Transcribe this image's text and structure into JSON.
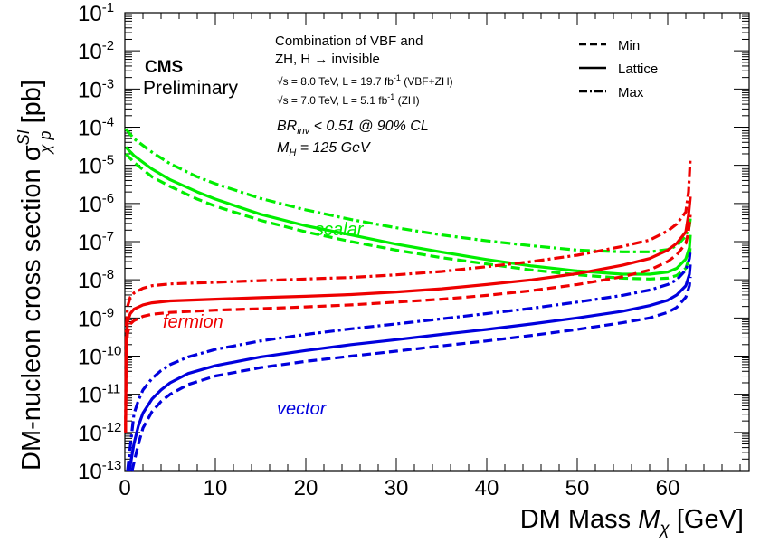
{
  "chart_data": {
    "type": "line",
    "xlabel_main": "DM Mass",
    "xlabel_var": "M",
    "xlabel_sub": "χ",
    "xlabel_unit": "[GeV]",
    "ylabel_main": "DM-nucleon cross section",
    "ylabel_sym": "σ",
    "ylabel_sup": "SI",
    "ylabel_sub": "χ p",
    "ylabel_unit": "[pb]",
    "xlim": [
      0,
      69
    ],
    "ylim_log10": [
      -13,
      -1
    ],
    "log_y": true,
    "grid": false,
    "x_ticks": [
      0,
      10,
      20,
      30,
      40,
      50,
      60
    ],
    "y_ticks": [
      {
        "base": "10",
        "exp": "-1"
      },
      {
        "base": "10",
        "exp": "-2"
      },
      {
        "base": "10",
        "exp": "-3"
      },
      {
        "base": "10",
        "exp": "-4"
      },
      {
        "base": "10",
        "exp": "-5"
      },
      {
        "base": "10",
        "exp": "-6"
      },
      {
        "base": "10",
        "exp": "-7"
      },
      {
        "base": "10",
        "exp": "-8"
      },
      {
        "base": "10",
        "exp": "-9"
      },
      {
        "base": "10",
        "exp": "-10"
      },
      {
        "base": "10",
        "exp": "-11"
      },
      {
        "base": "10",
        "exp": "-12"
      },
      {
        "base": "10",
        "exp": "-13"
      }
    ],
    "series": [
      {
        "group": "scalar",
        "style": "dash",
        "color": "#00ee00",
        "points": [
          [
            0.1,
            2e-05
          ],
          [
            1,
            1.2e-05
          ],
          [
            3,
            5e-06
          ],
          [
            5,
            2.8e-06
          ],
          [
            8,
            1.3e-06
          ],
          [
            10,
            8.5e-07
          ],
          [
            15,
            3.6e-07
          ],
          [
            20,
            1.8e-07
          ],
          [
            25,
            1e-07
          ],
          [
            30,
            6e-08
          ],
          [
            35,
            3.8e-08
          ],
          [
            40,
            2.6e-08
          ],
          [
            45,
            1.8e-08
          ],
          [
            50,
            1.35e-08
          ],
          [
            55,
            1.1e-08
          ],
          [
            58,
            1.05e-08
          ],
          [
            60,
            1.1e-08
          ],
          [
            61,
            1.3e-08
          ],
          [
            62,
            2e-08
          ],
          [
            62.4,
            4e-08
          ],
          [
            62.5,
            8e-08
          ]
        ]
      },
      {
        "group": "scalar",
        "style": "solid",
        "color": "#00ee00",
        "points": [
          [
            0.1,
            3e-05
          ],
          [
            1,
            1.8e-05
          ],
          [
            3,
            8e-06
          ],
          [
            5,
            4.2e-06
          ],
          [
            8,
            2e-06
          ],
          [
            10,
            1.3e-06
          ],
          [
            15,
            5.2e-07
          ],
          [
            20,
            2.6e-07
          ],
          [
            25,
            1.5e-07
          ],
          [
            30,
            8.6e-08
          ],
          [
            35,
            5.3e-08
          ],
          [
            40,
            3.4e-08
          ],
          [
            45,
            2.3e-08
          ],
          [
            50,
            1.7e-08
          ],
          [
            55,
            1.4e-08
          ],
          [
            58,
            1.4e-08
          ],
          [
            60,
            1.6e-08
          ],
          [
            61,
            2e-08
          ],
          [
            62,
            3.5e-08
          ],
          [
            62.4,
            7e-08
          ],
          [
            62.5,
            1.5e-07
          ]
        ]
      },
      {
        "group": "scalar",
        "style": "dashdot",
        "color": "#00ee00",
        "points": [
          [
            0.1,
            9e-05
          ],
          [
            1,
            5e-05
          ],
          [
            3,
            2.2e-05
          ],
          [
            5,
            1.1e-05
          ],
          [
            8,
            5e-06
          ],
          [
            10,
            3.3e-06
          ],
          [
            15,
            1.35e-06
          ],
          [
            20,
            6.8e-07
          ],
          [
            25,
            3.8e-07
          ],
          [
            30,
            2.3e-07
          ],
          [
            35,
            1.5e-07
          ],
          [
            40,
            1.05e-07
          ],
          [
            45,
            7.8e-08
          ],
          [
            50,
            6e-08
          ],
          [
            55,
            5.4e-08
          ],
          [
            58,
            5.4e-08
          ],
          [
            60,
            6.2e-08
          ],
          [
            61,
            7.8e-08
          ],
          [
            62,
            1.4e-07
          ],
          [
            62.4,
            2.6e-07
          ],
          [
            62.5,
            4e-07
          ]
        ]
      },
      {
        "group": "fermion",
        "style": "dash",
        "color": "#ee0000",
        "points": [
          [
            0.08,
            1e-12
          ],
          [
            0.15,
            1e-10
          ],
          [
            0.3,
            4e-10
          ],
          [
            0.6,
            7e-10
          ],
          [
            1,
            8.5e-10
          ],
          [
            2,
            1.1e-09
          ],
          [
            3,
            1.25e-09
          ],
          [
            5,
            1.4e-09
          ],
          [
            10,
            1.6e-09
          ],
          [
            15,
            1.75e-09
          ],
          [
            20,
            1.95e-09
          ],
          [
            25,
            2.2e-09
          ],
          [
            30,
            2.6e-09
          ],
          [
            35,
            3.1e-09
          ],
          [
            40,
            3.9e-09
          ],
          [
            45,
            5.2e-09
          ],
          [
            50,
            7.5e-09
          ],
          [
            55,
            1.2e-08
          ],
          [
            58,
            1.8e-08
          ],
          [
            60,
            3e-08
          ],
          [
            61,
            4.5e-08
          ],
          [
            62,
            9e-08
          ],
          [
            62.3,
            1.8e-07
          ],
          [
            62.5,
            5e-07
          ]
        ]
      },
      {
        "group": "fermion",
        "style": "solid",
        "color": "#ee0000",
        "points": [
          [
            0.08,
            1e-12
          ],
          [
            0.15,
            2e-10
          ],
          [
            0.3,
            8e-10
          ],
          [
            0.6,
            1.3e-09
          ],
          [
            1,
            1.7e-09
          ],
          [
            2,
            2.2e-09
          ],
          [
            3,
            2.5e-09
          ],
          [
            5,
            2.8e-09
          ],
          [
            10,
            3.1e-09
          ],
          [
            15,
            3.4e-09
          ],
          [
            20,
            3.7e-09
          ],
          [
            25,
            4.1e-09
          ],
          [
            30,
            4.8e-09
          ],
          [
            35,
            5.8e-09
          ],
          [
            40,
            7.5e-09
          ],
          [
            45,
            1e-08
          ],
          [
            50,
            1.45e-08
          ],
          [
            55,
            2.4e-08
          ],
          [
            58,
            3.6e-08
          ],
          [
            60,
            6e-08
          ],
          [
            61,
            9e-08
          ],
          [
            62,
            1.8e-07
          ],
          [
            62.3,
            5e-07
          ],
          [
            62.5,
            1.5e-06
          ]
        ]
      },
      {
        "group": "fermion",
        "style": "dashdot",
        "color": "#ee0000",
        "points": [
          [
            0.08,
            1.5e-12
          ],
          [
            0.15,
            6e-10
          ],
          [
            0.3,
            2e-09
          ],
          [
            0.6,
            3.5e-09
          ],
          [
            1,
            4.5e-09
          ],
          [
            2,
            6e-09
          ],
          [
            3,
            7e-09
          ],
          [
            5,
            7.8e-09
          ],
          [
            10,
            8.6e-09
          ],
          [
            15,
            9.5e-09
          ],
          [
            20,
            1.05e-08
          ],
          [
            25,
            1.15e-08
          ],
          [
            30,
            1.35e-08
          ],
          [
            35,
            1.65e-08
          ],
          [
            40,
            2.2e-08
          ],
          [
            45,
            3e-08
          ],
          [
            50,
            4.4e-08
          ],
          [
            55,
            7.5e-08
          ],
          [
            58,
            1.1e-07
          ],
          [
            60,
            1.9e-07
          ],
          [
            61,
            2.9e-07
          ],
          [
            62,
            6e-07
          ],
          [
            62.3,
            2e-06
          ],
          [
            62.5,
            1.6e-05
          ]
        ]
      },
      {
        "group": "vector",
        "style": "dash",
        "color": "#0000dd",
        "points": [
          [
            0.8,
            1e-13
          ],
          [
            1,
            1.6e-13
          ],
          [
            1.5,
            5e-13
          ],
          [
            2,
            1.3e-12
          ],
          [
            3,
            3.5e-12
          ],
          [
            4,
            6.5e-12
          ],
          [
            5,
            1e-11
          ],
          [
            7,
            1.8e-11
          ],
          [
            10,
            3e-11
          ],
          [
            15,
            5e-11
          ],
          [
            20,
            7.3e-11
          ],
          [
            25,
            1e-10
          ],
          [
            30,
            1.35e-10
          ],
          [
            35,
            1.85e-10
          ],
          [
            40,
            2.5e-10
          ],
          [
            45,
            3.5e-10
          ],
          [
            50,
            5e-10
          ],
          [
            55,
            7.5e-10
          ],
          [
            58,
            1e-09
          ],
          [
            60,
            1.4e-09
          ],
          [
            61,
            1.9e-09
          ],
          [
            62,
            3.5e-09
          ],
          [
            62.4,
            7e-09
          ],
          [
            62.5,
            1.2e-08
          ]
        ]
      },
      {
        "group": "vector",
        "style": "solid",
        "color": "#0000dd",
        "points": [
          [
            0.5,
            1e-13
          ],
          [
            1,
            5e-13
          ],
          [
            1.5,
            1.5e-12
          ],
          [
            2,
            3.2e-12
          ],
          [
            3,
            7.5e-12
          ],
          [
            4,
            1.3e-11
          ],
          [
            5,
            2e-11
          ],
          [
            7,
            3.5e-11
          ],
          [
            10,
            5.6e-11
          ],
          [
            15,
            9.5e-11
          ],
          [
            20,
            1.4e-10
          ],
          [
            25,
            2e-10
          ],
          [
            30,
            2.7e-10
          ],
          [
            35,
            3.7e-10
          ],
          [
            40,
            5e-10
          ],
          [
            45,
            7e-10
          ],
          [
            50,
            1e-09
          ],
          [
            55,
            1.5e-09
          ],
          [
            58,
            2.1e-09
          ],
          [
            60,
            2.9e-09
          ],
          [
            61,
            4e-09
          ],
          [
            62,
            7e-09
          ],
          [
            62.4,
            1.4e-08
          ],
          [
            62.5,
            2.5e-08
          ]
        ]
      },
      {
        "group": "vector",
        "style": "dashdot",
        "color": "#0000dd",
        "points": [
          [
            0.3,
            1e-13
          ],
          [
            1,
            3e-12
          ],
          [
            1.5,
            7e-12
          ],
          [
            2,
            1.3e-11
          ],
          [
            3,
            2.6e-11
          ],
          [
            4,
            4.2e-11
          ],
          [
            5,
            6e-11
          ],
          [
            7,
            9.5e-11
          ],
          [
            10,
            1.5e-10
          ],
          [
            15,
            2.5e-10
          ],
          [
            20,
            3.7e-10
          ],
          [
            25,
            5.2e-10
          ],
          [
            30,
            7e-10
          ],
          [
            35,
            9.5e-10
          ],
          [
            40,
            1.3e-09
          ],
          [
            45,
            1.8e-09
          ],
          [
            50,
            2.6e-09
          ],
          [
            55,
            3.9e-09
          ],
          [
            58,
            5.4e-09
          ],
          [
            60,
            7.5e-09
          ],
          [
            61,
            1e-08
          ],
          [
            62,
            1.8e-08
          ],
          [
            62.4,
            3.6e-08
          ],
          [
            62.5,
            6e-08
          ]
        ]
      }
    ],
    "annotations": {
      "cms": "CMS",
      "preliminary": "Preliminary",
      "line1": "Combination of VBF and",
      "line2": "ZH, H → invisible",
      "sqrt_s": "√s",
      "energy1": " = 8.0 TeV, L = 19.7 fb",
      "lumi_exp": "-1",
      "energy1_tail": " (VBF+ZH)",
      "energy2": " = 7.0 TeV, L = 5.1 fb",
      "energy2_tail": " (ZH)",
      "br_main": "BR",
      "br_sub": "inv",
      "br_tail": " < 0.51 @ 90% CL",
      "mh_main": "M",
      "mh_sub": "H",
      "mh_tail": " = 125 GeV",
      "label_scalar": "scalar",
      "label_fermion": "fermion",
      "label_vector": "vector"
    },
    "legend": {
      "position": "top-right",
      "entries": [
        {
          "label": "Min",
          "style": "dash"
        },
        {
          "label": "Lattice",
          "style": "solid"
        },
        {
          "label": "Max",
          "style": "dashdot"
        }
      ]
    }
  }
}
